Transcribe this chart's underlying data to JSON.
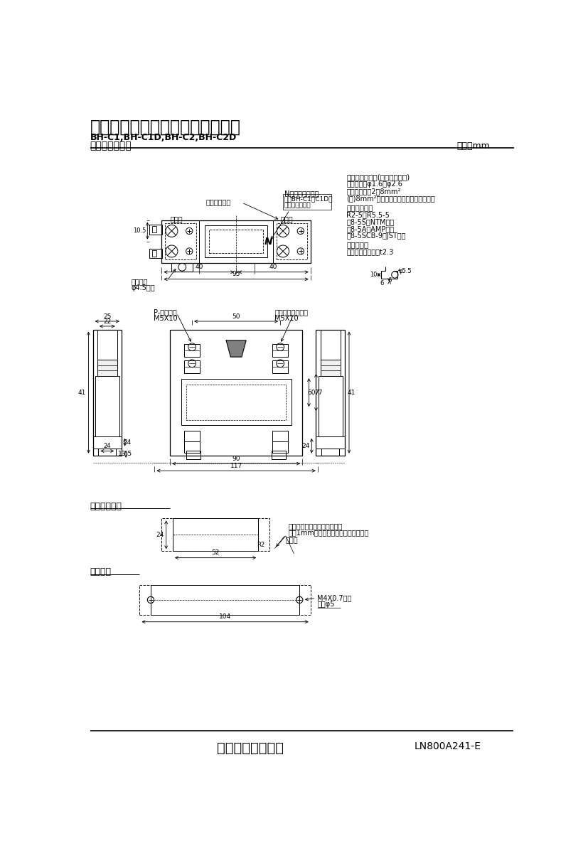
{
  "title1": "三菱分電盤用ノーヒューズ遮断器",
  "title2": "BH-C1,BH-C1D,BH-C2,BH-C2D",
  "title3": "標準外形寸法図",
  "unit": "単位：mm",
  "company": "三菱電機株式会社",
  "doc_number": "LN800A241-E",
  "wire_size_title": "適合電線サイズ(負荷端子のみ)",
  "wire_size_lines": [
    "　単線　：φ1.6～φ2.6",
    "　より線　：2～8mm²",
    "(注)8mm²電線は圧着端子をご使用下さい"
  ],
  "crimp_title": "適合圧着端子",
  "crimp_lines": [
    "R2-5～R5.5-5",
    "　8-5S（NTM社）",
    "　8-5A（AMP社）",
    "　8-5SCB-9（JST社）"
  ],
  "band_title": "導帯加工図",
  "band_line": "　最大導帯板厚　t2.3",
  "label_center": "遮断器の中心",
  "label_N": "N（中性線記号）",
  "label_note_box": "注：BH-C1，C1D形\nにのみ付きます",
  "label_source": "電源側",
  "label_load": "負荷側",
  "label_clip": "取付つめ\nφ4.5長穴",
  "label_P_screw": "P-なべねじ\nM5X10",
  "label_self_screw": "セルフアップねじ\nM5X10",
  "label_panel_hole": "表板穴明寸法",
  "label_hole_dim": "穴明寸法",
  "hole_note1": "穴明寸法は遮断器窓枠に対し",
  "hole_note2": "片側1mmの隙間をもたせた寸法です。",
  "label_breaker": "遮断器",
  "label_screw_hole": "M4X0.7ねじ",
  "label_screw_hole2": "又はφ5",
  "bg_color": "#ffffff"
}
